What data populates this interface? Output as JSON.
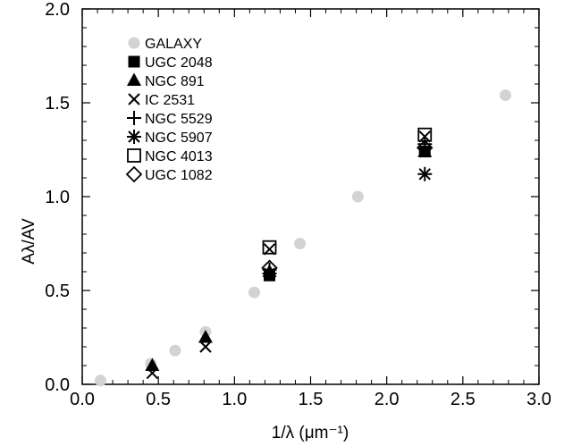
{
  "chart_data": {
    "type": "scatter",
    "title": "",
    "xlabel": "1/λ (μm⁻¹)",
    "ylabel": "Aλ/AV",
    "xlim": [
      0.0,
      3.0
    ],
    "ylim": [
      0.0,
      2.0
    ],
    "x_ticks": [
      0.0,
      0.5,
      1.0,
      1.5,
      2.0,
      2.5,
      3.0
    ],
    "y_ticks": [
      0.0,
      0.5,
      1.0,
      1.5,
      2.0
    ],
    "x_tick_labels": [
      "0.0",
      "0.5",
      "1.0",
      "1.5",
      "2.0",
      "2.5",
      "3.0"
    ],
    "y_tick_labels": [
      "0.0",
      "0.5",
      "1.0",
      "1.5",
      "2.0"
    ],
    "grid": false,
    "legend_position": "top-left",
    "series": [
      {
        "name": "GALAXY",
        "marker": "filled-circle",
        "color": "#d3d3d3",
        "points": [
          [
            0.12,
            0.02
          ],
          [
            0.45,
            0.11
          ],
          [
            0.61,
            0.18
          ],
          [
            0.81,
            0.28
          ],
          [
            1.13,
            0.49
          ],
          [
            1.43,
            0.75
          ],
          [
            1.81,
            1.0
          ],
          [
            2.78,
            1.54
          ]
        ]
      },
      {
        "name": "UGC 2048",
        "marker": "filled-square",
        "color": "#000000",
        "points": [
          [
            1.23,
            0.58
          ],
          [
            2.25,
            1.24
          ]
        ]
      },
      {
        "name": "NGC 891",
        "marker": "filled-triangle",
        "color": "#000000",
        "points": [
          [
            0.46,
            0.1
          ],
          [
            0.81,
            0.25
          ],
          [
            1.23,
            0.6
          ],
          [
            2.25,
            1.24
          ]
        ]
      },
      {
        "name": "IC 2531",
        "marker": "x",
        "color": "#000000",
        "points": [
          [
            0.46,
            0.06
          ],
          [
            0.81,
            0.2
          ],
          [
            1.23,
            0.72
          ],
          [
            2.25,
            1.32
          ]
        ]
      },
      {
        "name": "NGC 5529",
        "marker": "plus",
        "color": "#000000",
        "points": [
          [
            1.23,
            0.61
          ],
          [
            2.25,
            1.28
          ]
        ]
      },
      {
        "name": "NGC 5907",
        "marker": "asterisk",
        "color": "#000000",
        "points": [
          [
            1.23,
            0.59
          ],
          [
            2.25,
            1.12
          ]
        ]
      },
      {
        "name": "NGC 4013",
        "marker": "open-square",
        "color": "#000000",
        "points": [
          [
            1.23,
            0.73
          ],
          [
            2.25,
            1.33
          ]
        ]
      },
      {
        "name": "UGC 1082",
        "marker": "open-diamond",
        "color": "#000000",
        "points": [
          [
            1.23,
            0.62
          ],
          [
            2.25,
            1.26
          ]
        ]
      }
    ]
  }
}
